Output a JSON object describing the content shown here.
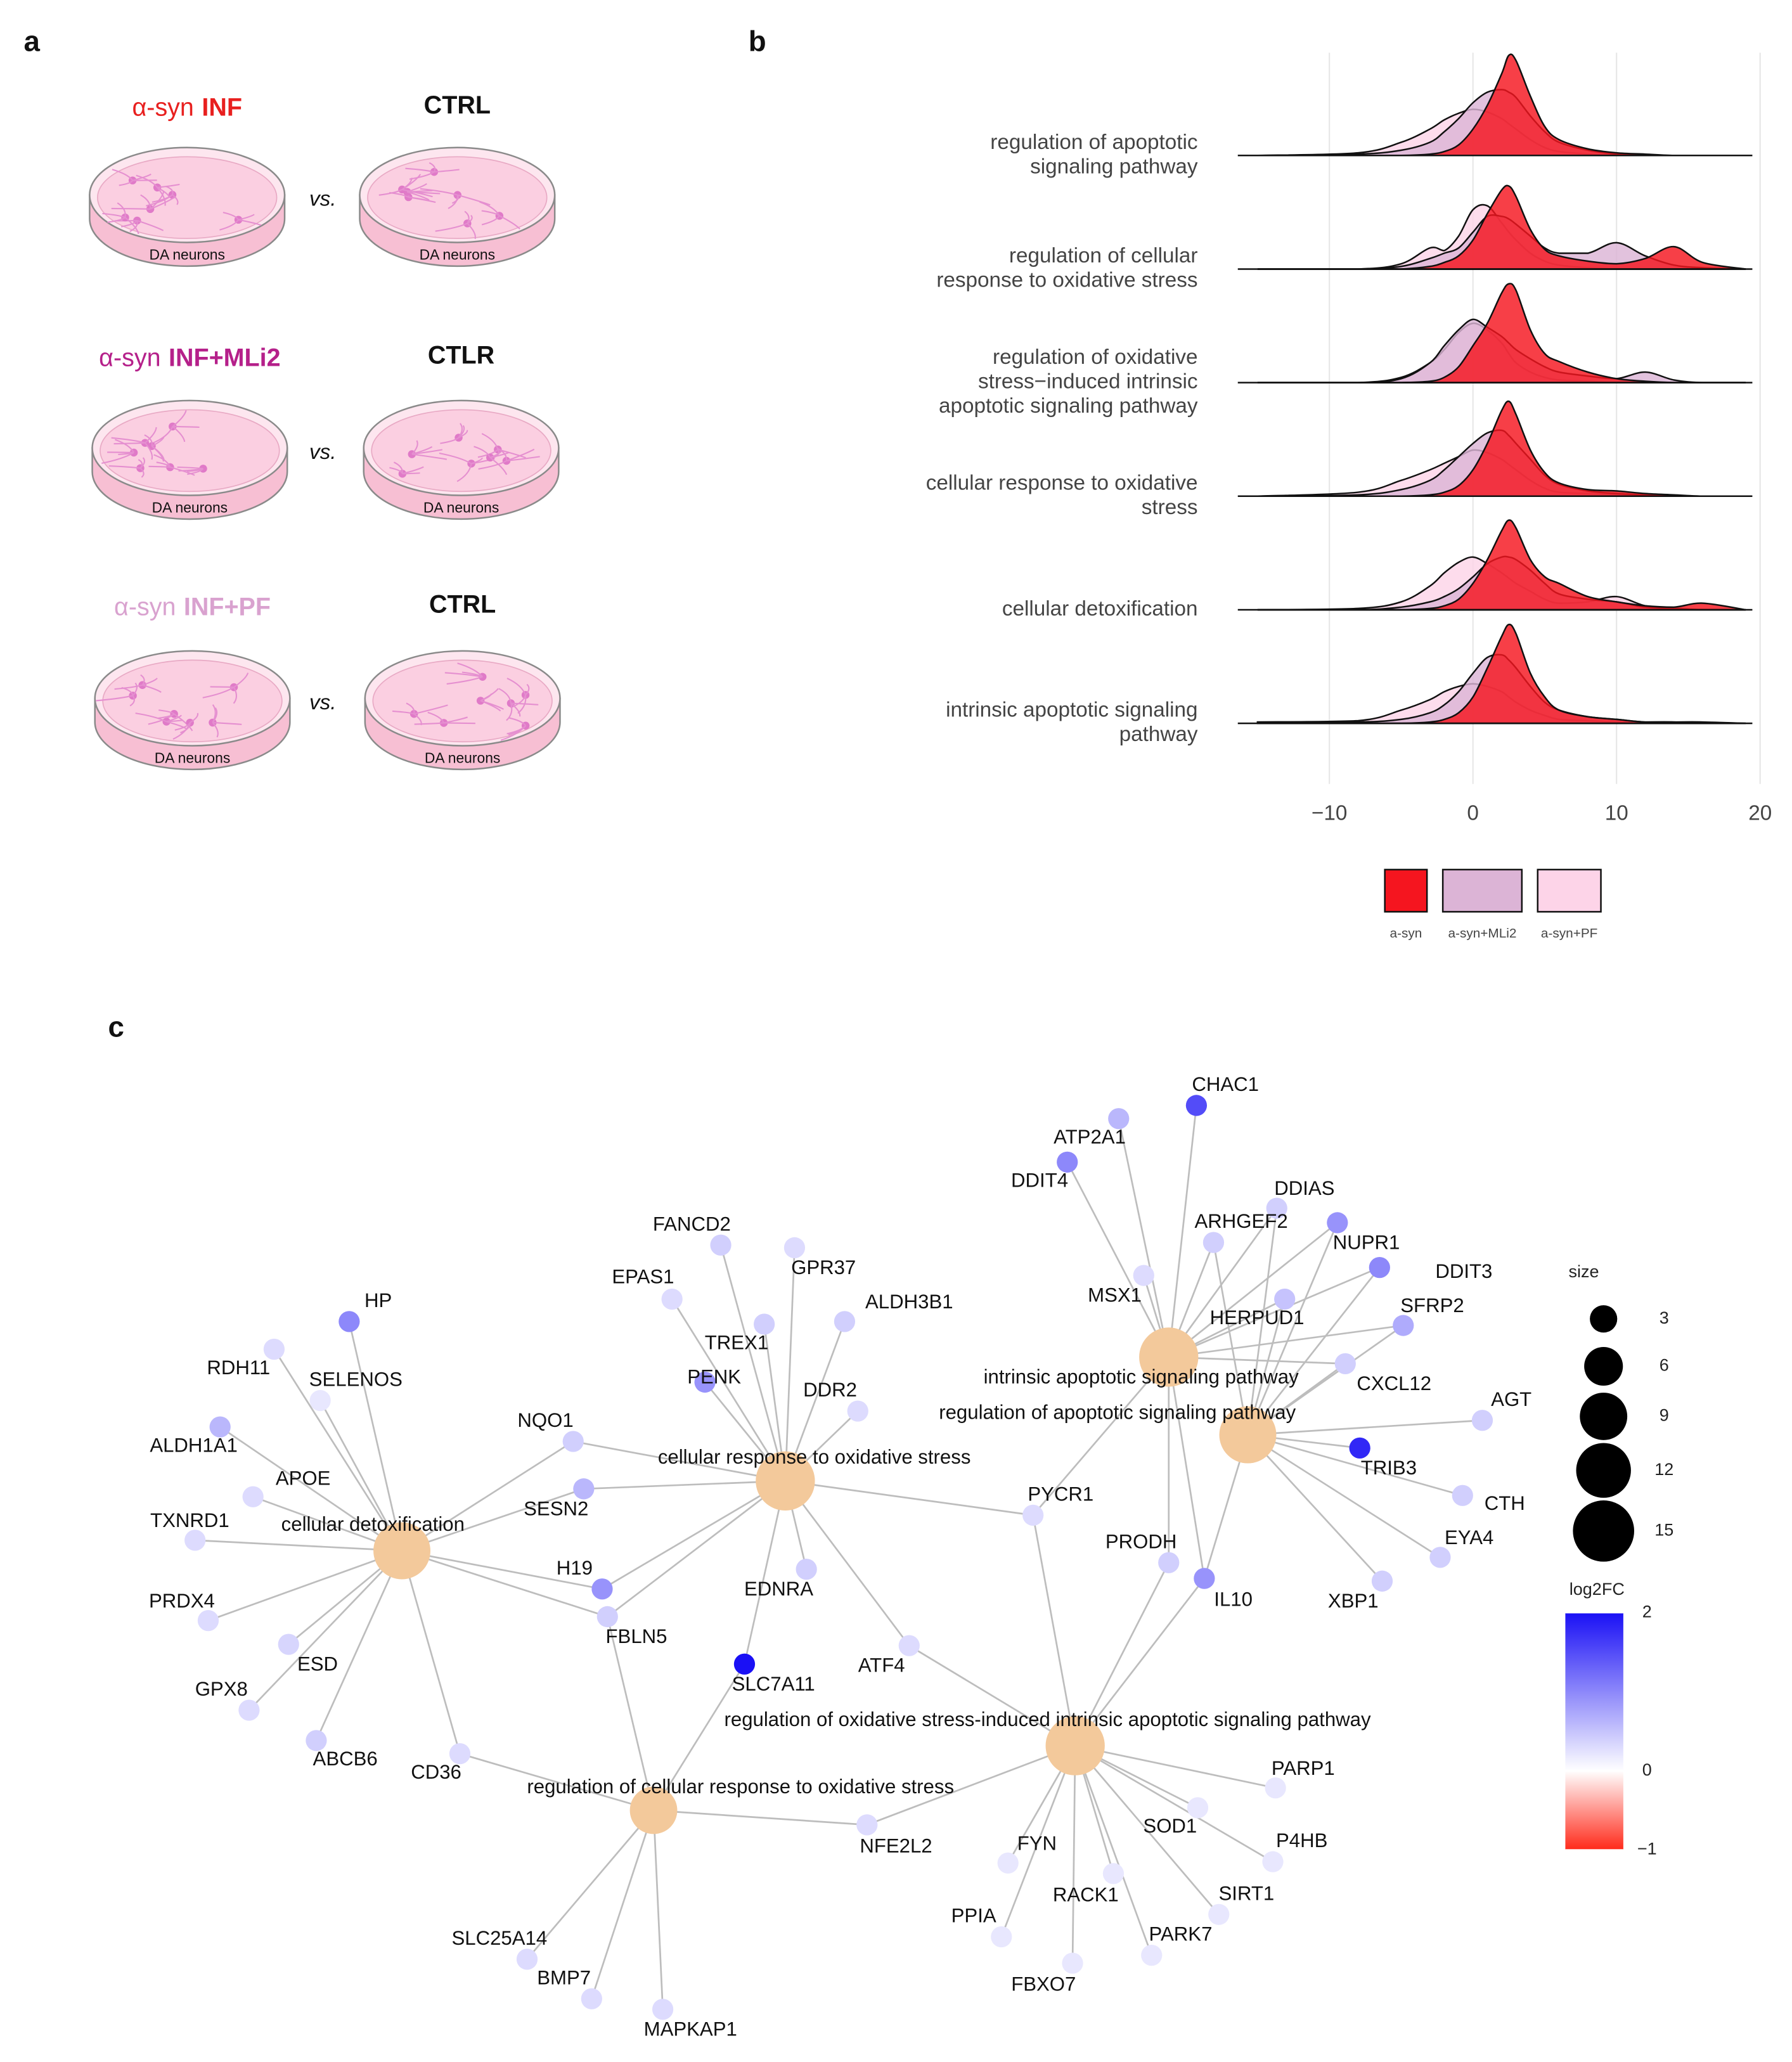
{
  "panel_labels": [
    "a",
    "b",
    "c"
  ],
  "panel_a": {
    "rows": [
      {
        "prefix": "α-syn",
        "treatment": "INF",
        "color": "#e8201f",
        "vs": "vs.",
        "control": "CTRL",
        "left_dish": "DA neurons",
        "right_dish": "DA neurons"
      },
      {
        "prefix": "α-syn",
        "treatment": "INF+MLi2",
        "color": "#b5208a",
        "vs": "vs.",
        "control": "CTLR",
        "left_dish": "DA neurons",
        "right_dish": "DA neurons"
      },
      {
        "prefix": "α-syn",
        "treatment": "INF+PF",
        "color": "#d9a2cf",
        "vs": "vs.",
        "control": "CTRL",
        "left_dish": "DA neurons",
        "right_dish": "DA neurons"
      }
    ]
  },
  "chart_data": {
    "type": "ridgeline",
    "categories": [
      [
        "regulation of apoptotic",
        "signaling pathway"
      ],
      [
        "regulation of cellular",
        "response to oxidative stress"
      ],
      [
        "regulation of oxidative",
        "stress−induced intrinsic",
        "apoptotic signaling pathway"
      ],
      [
        "cellular response to oxidative",
        "stress"
      ],
      [
        "cellular detoxification"
      ],
      [
        "intrinsic apoptotic signaling",
        "pathway"
      ]
    ],
    "x": [
      -15,
      -8,
      -5,
      -3,
      -2,
      -1,
      0,
      1,
      2,
      2.5,
      3,
      4,
      5,
      6,
      8,
      10,
      12,
      14,
      16,
      19
    ],
    "series": [
      {
        "name": "a-syn+PF",
        "color": "#fdd4e8",
        "values": [
          [
            0,
            2,
            10,
            20,
            27,
            32,
            35,
            33,
            28,
            24,
            20,
            12,
            6,
            3,
            1,
            0,
            0,
            0,
            0,
            0
          ],
          [
            0,
            0,
            4,
            16,
            14,
            25,
            45,
            48,
            35,
            28,
            22,
            12,
            6,
            3,
            1,
            0,
            0,
            0,
            0,
            0
          ],
          [
            0,
            0,
            4,
            15,
            25,
            38,
            45,
            40,
            30,
            22,
            15,
            8,
            4,
            2,
            1,
            0,
            0,
            0,
            0,
            0
          ],
          [
            0,
            3,
            12,
            20,
            25,
            30,
            35,
            33,
            28,
            24,
            20,
            12,
            6,
            3,
            2,
            1,
            0,
            0,
            0,
            0
          ],
          [
            0,
            1,
            6,
            18,
            28,
            36,
            40,
            35,
            28,
            24,
            20,
            14,
            8,
            5,
            6,
            10,
            3,
            1,
            0,
            0
          ],
          [
            1,
            2,
            10,
            18,
            24,
            28,
            30,
            28,
            24,
            20,
            16,
            10,
            6,
            3,
            2,
            1,
            0,
            0,
            0,
            0
          ]
        ]
      },
      {
        "name": "a-syn+MLi2",
        "color": "#dcb4d6",
        "values": [
          [
            0,
            1,
            4,
            10,
            18,
            28,
            40,
            48,
            50,
            48,
            44,
            30,
            18,
            10,
            4,
            1,
            0,
            0,
            0,
            0
          ],
          [
            0,
            0,
            2,
            8,
            12,
            16,
            28,
            40,
            40,
            38,
            34,
            25,
            16,
            12,
            12,
            20,
            10,
            3,
            1,
            0
          ],
          [
            0,
            0,
            3,
            15,
            28,
            40,
            48,
            42,
            35,
            30,
            25,
            18,
            12,
            8,
            5,
            3,
            8,
            2,
            0,
            0
          ],
          [
            0,
            1,
            5,
            12,
            20,
            30,
            40,
            48,
            50,
            46,
            40,
            28,
            16,
            9,
            4,
            2,
            1,
            0,
            0,
            0
          ],
          [
            0,
            0,
            2,
            6,
            10,
            16,
            25,
            35,
            40,
            40,
            38,
            30,
            20,
            12,
            8,
            6,
            2,
            1,
            0,
            0
          ],
          [
            1,
            1,
            3,
            8,
            14,
            24,
            38,
            50,
            52,
            48,
            42,
            28,
            16,
            10,
            5,
            3,
            1,
            1,
            0,
            0
          ]
        ]
      },
      {
        "name": "a-syn",
        "color": "#f5151f",
        "values": [
          [
            0,
            0,
            0,
            1,
            3,
            8,
            20,
            38,
            62,
            76,
            72,
            45,
            22,
            12,
            5,
            2,
            1,
            0,
            0,
            0
          ],
          [
            0,
            0,
            0,
            2,
            5,
            10,
            22,
            42,
            60,
            63,
            55,
            30,
            15,
            10,
            6,
            4,
            8,
            17,
            5,
            0
          ],
          [
            0,
            0,
            0,
            1,
            4,
            12,
            28,
            45,
            68,
            75,
            70,
            40,
            22,
            16,
            8,
            3,
            1,
            0,
            0,
            0
          ],
          [
            0,
            0,
            0,
            1,
            3,
            8,
            20,
            40,
            65,
            72,
            62,
            35,
            18,
            10,
            5,
            4,
            2,
            1,
            0,
            0
          ],
          [
            0,
            0,
            0,
            1,
            3,
            8,
            20,
            38,
            60,
            68,
            62,
            38,
            25,
            20,
            10,
            6,
            3,
            2,
            5,
            0
          ],
          [
            0,
            0,
            0,
            1,
            3,
            8,
            20,
            42,
            66,
            75,
            68,
            38,
            20,
            10,
            5,
            3,
            1,
            1,
            1,
            0
          ]
        ]
      }
    ],
    "xlim": [
      -17.7,
      21.3
    ],
    "xticks": [
      {
        "value": -10,
        "label": "−10"
      },
      0,
      10,
      20
    ],
    "grid": true
  },
  "network": {
    "pathways": [
      {
        "label": "cellular detoxification",
        "size": 13
      },
      {
        "label": "cellular response to oxidative stress",
        "size": 14
      },
      {
        "label": "intrinsic apoptotic signaling pathway",
        "size": 14
      },
      {
        "label": "regulation of apoptotic signaling pathway",
        "size": 13
      },
      {
        "label": "regulation of oxidative stress-induced intrinsic apoptotic signaling pathway",
        "size": 14
      },
      {
        "label": "regulation of cellular response to oxidative stress",
        "size": 9
      }
    ],
    "genes": [
      {
        "label": "HP",
        "log2fc": 1.0,
        "pathways": [
          0
        ]
      },
      {
        "label": "RDH11",
        "log2fc": 0.3,
        "pathways": [
          0
        ]
      },
      {
        "label": "SELENOS",
        "log2fc": 0.2,
        "pathways": [
          0
        ]
      },
      {
        "label": "ALDH1A1",
        "log2fc": 0.6,
        "pathways": [
          0
        ]
      },
      {
        "label": "APOE",
        "log2fc": 0.3,
        "pathways": [
          0
        ]
      },
      {
        "label": "TXNRD1",
        "log2fc": 0.3,
        "pathways": [
          0
        ]
      },
      {
        "label": "PRDX4",
        "log2fc": 0.3,
        "pathways": [
          0
        ]
      },
      {
        "label": "ESD",
        "log2fc": 0.35,
        "pathways": [
          0
        ]
      },
      {
        "label": "GPX8",
        "log2fc": 0.3,
        "pathways": [
          0
        ]
      },
      {
        "label": "ABCB6",
        "log2fc": 0.4,
        "pathways": [
          0
        ]
      },
      {
        "label": "CD36",
        "log2fc": 0.3,
        "pathways": [
          0,
          5
        ]
      },
      {
        "label": "NQO1",
        "log2fc": 0.4,
        "pathways": [
          0,
          1
        ]
      },
      {
        "label": "SESN2",
        "log2fc": 0.6,
        "pathways": [
          0,
          1
        ]
      },
      {
        "label": "H19",
        "log2fc": 0.9,
        "pathways": [
          0,
          1
        ]
      },
      {
        "label": "FBLN5",
        "log2fc": 0.4,
        "pathways": [
          0,
          1,
          5
        ]
      },
      {
        "label": "FANCD2",
        "log2fc": 0.4,
        "pathways": [
          1
        ]
      },
      {
        "label": "GPR37",
        "log2fc": 0.3,
        "pathways": [
          1
        ]
      },
      {
        "label": "EPAS1",
        "log2fc": 0.3,
        "pathways": [
          1
        ]
      },
      {
        "label": "ALDH3B1",
        "log2fc": 0.4,
        "pathways": [
          1
        ]
      },
      {
        "label": "TREX1",
        "log2fc": 0.4,
        "pathways": [
          1
        ]
      },
      {
        "label": "PENK",
        "log2fc": 0.9,
        "pathways": [
          1
        ]
      },
      {
        "label": "DDR2",
        "log2fc": 0.3,
        "pathways": [
          1
        ]
      },
      {
        "label": "EDNRA",
        "log2fc": 0.4,
        "pathways": [
          1
        ]
      },
      {
        "label": "SLC7A11",
        "log2fc": 2.0,
        "pathways": [
          1,
          5
        ]
      },
      {
        "label": "ATF4",
        "log2fc": 0.3,
        "pathways": [
          1,
          4
        ]
      },
      {
        "label": "PYCR1",
        "log2fc": 0.3,
        "pathways": [
          1,
          2,
          4
        ]
      },
      {
        "label": "NFE2L2",
        "log2fc": 0.3,
        "pathways": [
          5,
          4
        ]
      },
      {
        "label": "SLC25A14",
        "log2fc": 0.3,
        "pathways": [
          5
        ]
      },
      {
        "label": "BMP7",
        "log2fc": 0.3,
        "pathways": [
          5
        ]
      },
      {
        "label": "MAPKAP1",
        "log2fc": 0.3,
        "pathways": [
          5
        ]
      },
      {
        "label": "CHAC1",
        "log2fc": 1.5,
        "pathways": [
          2
        ]
      },
      {
        "label": "ATP2A1",
        "log2fc": 0.6,
        "pathways": [
          2
        ]
      },
      {
        "label": "DDIT4",
        "log2fc": 1.0,
        "pathways": [
          2
        ]
      },
      {
        "label": "DDIAS",
        "log2fc": 0.4,
        "pathways": [
          2,
          3
        ]
      },
      {
        "label": "ARHGEF2",
        "log2fc": 0.4,
        "pathways": [
          2,
          3
        ]
      },
      {
        "label": "NUPR1",
        "log2fc": 0.9,
        "pathways": [
          2,
          3
        ]
      },
      {
        "label": "DDIT3",
        "log2fc": 1.0,
        "pathways": [
          2,
          3
        ]
      },
      {
        "label": "MSX1",
        "log2fc": 0.3,
        "pathways": [
          2
        ]
      },
      {
        "label": "HERPUD1",
        "log2fc": 0.5,
        "pathways": [
          2,
          3
        ]
      },
      {
        "label": "SFRP2",
        "log2fc": 0.7,
        "pathways": [
          2,
          3
        ]
      },
      {
        "label": "CXCL12",
        "log2fc": 0.4,
        "pathways": [
          2,
          3
        ]
      },
      {
        "label": "AGT",
        "log2fc": 0.4,
        "pathways": [
          3
        ]
      },
      {
        "label": "TRIB3",
        "log2fc": 1.8,
        "pathways": [
          3
        ]
      },
      {
        "label": "CTH",
        "log2fc": 0.4,
        "pathways": [
          3
        ]
      },
      {
        "label": "EYA4",
        "log2fc": 0.4,
        "pathways": [
          3
        ]
      },
      {
        "label": "XBP1",
        "log2fc": 0.4,
        "pathways": [
          3
        ]
      },
      {
        "label": "PRODH",
        "log2fc": 0.4,
        "pathways": [
          2,
          4
        ]
      },
      {
        "label": "IL10",
        "log2fc": 0.9,
        "pathways": [
          2,
          3,
          4
        ]
      },
      {
        "label": "PARP1",
        "log2fc": 0.2,
        "pathways": [
          4
        ]
      },
      {
        "label": "SOD1",
        "log2fc": 0.2,
        "pathways": [
          4
        ]
      },
      {
        "label": "P4HB",
        "log2fc": 0.2,
        "pathways": [
          4
        ]
      },
      {
        "label": "FYN",
        "log2fc": 0.2,
        "pathways": [
          4
        ]
      },
      {
        "label": "RACK1",
        "log2fc": 0.2,
        "pathways": [
          4
        ]
      },
      {
        "label": "SIRT1",
        "log2fc": 0.2,
        "pathways": [
          4
        ]
      },
      {
        "label": "PPIA",
        "log2fc": 0.2,
        "pathways": [
          4
        ]
      },
      {
        "label": "PARK7",
        "log2fc": 0.2,
        "pathways": [
          4
        ]
      },
      {
        "label": "FBXO7",
        "log2fc": 0.2,
        "pathways": [
          4
        ]
      }
    ],
    "size_legend": {
      "title": "size",
      "values": [
        3,
        6,
        9,
        12,
        15
      ]
    },
    "color_legend": {
      "title": "log2FC",
      "lim": [
        -1,
        2
      ],
      "ticks": [
        2,
        0,
        {
          "value": -1,
          "label": "−1"
        }
      ],
      "colors": {
        "low": "#ff2a1a",
        "mid": "#ffffff",
        "high": "#1a10f5"
      }
    },
    "pathway_color": "#f3c99b",
    "edge_color": "#bdbdbd"
  }
}
